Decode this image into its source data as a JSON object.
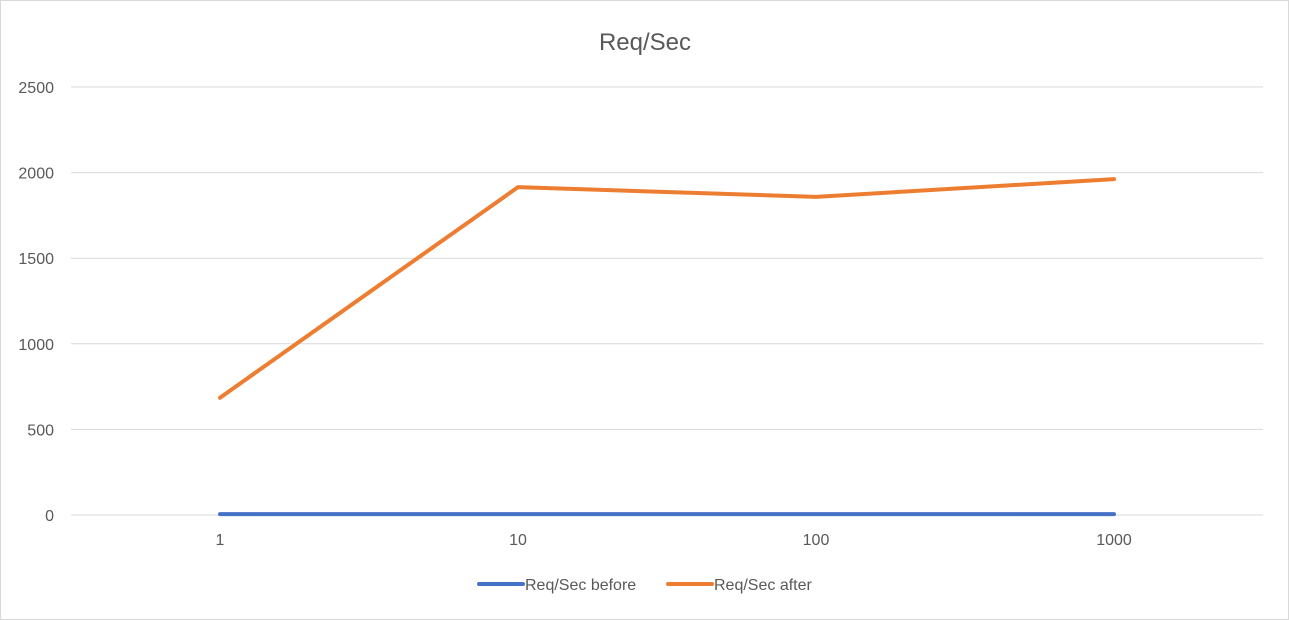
{
  "chart_data": {
    "type": "line",
    "title": "Req/Sec",
    "categories": [
      "1",
      "10",
      "100",
      "1000"
    ],
    "series": [
      {
        "name": "Req/Sec before",
        "color": "#4472C4",
        "values": [
          5,
          5,
          5,
          5
        ]
      },
      {
        "name": "Req/Sec after",
        "color": "#ED7D31",
        "values": [
          685,
          1915,
          1858,
          1962
        ]
      }
    ],
    "ylim": [
      0,
      2500
    ],
    "yticks": [
      0,
      500,
      1000,
      1500,
      2000,
      2500
    ],
    "grid": true,
    "legend": "bottom",
    "xlabel": "",
    "ylabel": ""
  }
}
